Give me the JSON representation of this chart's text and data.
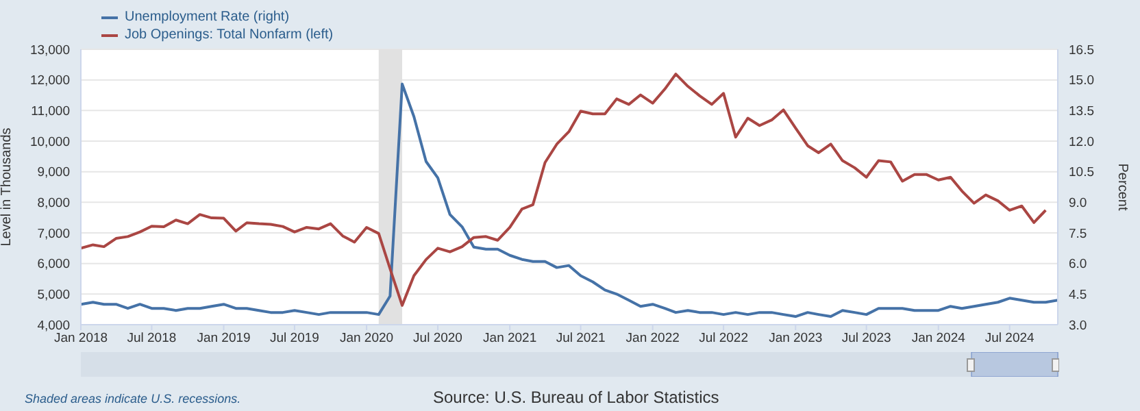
{
  "chart_data": {
    "type": "line",
    "x": [
      "2018-01",
      "2018-02",
      "2018-03",
      "2018-04",
      "2018-05",
      "2018-06",
      "2018-07",
      "2018-08",
      "2018-09",
      "2018-10",
      "2018-11",
      "2018-12",
      "2019-01",
      "2019-02",
      "2019-03",
      "2019-04",
      "2019-05",
      "2019-06",
      "2019-07",
      "2019-08",
      "2019-09",
      "2019-10",
      "2019-11",
      "2019-12",
      "2020-01",
      "2020-02",
      "2020-03",
      "2020-04",
      "2020-05",
      "2020-06",
      "2020-07",
      "2020-08",
      "2020-09",
      "2020-10",
      "2020-11",
      "2020-12",
      "2021-01",
      "2021-02",
      "2021-03",
      "2021-04",
      "2021-05",
      "2021-06",
      "2021-07",
      "2021-08",
      "2021-09",
      "2021-10",
      "2021-11",
      "2021-12",
      "2022-01",
      "2022-02",
      "2022-03",
      "2022-04",
      "2022-05",
      "2022-06",
      "2022-07",
      "2022-08",
      "2022-09",
      "2022-10",
      "2022-11",
      "2022-12",
      "2023-01",
      "2023-02",
      "2023-03",
      "2023-04",
      "2023-05",
      "2023-06",
      "2023-07",
      "2023-08",
      "2023-09",
      "2023-10",
      "2023-11",
      "2023-12",
      "2024-01",
      "2024-02",
      "2024-03",
      "2024-04",
      "2024-05",
      "2024-06",
      "2024-07",
      "2024-08",
      "2024-09",
      "2024-10",
      "2024-11"
    ],
    "series": [
      {
        "name": "Unemployment Rate (right)",
        "color": "#4572a7",
        "axis": "y2",
        "values": [
          4.0,
          4.1,
          4.0,
          4.0,
          3.8,
          4.0,
          3.8,
          3.8,
          3.7,
          3.8,
          3.8,
          3.9,
          4.0,
          3.8,
          3.8,
          3.7,
          3.6,
          3.6,
          3.7,
          3.6,
          3.5,
          3.6,
          3.6,
          3.6,
          3.6,
          3.5,
          4.4,
          14.8,
          13.2,
          11.0,
          10.2,
          8.4,
          7.8,
          6.8,
          6.7,
          6.7,
          6.4,
          6.2,
          6.1,
          6.1,
          5.8,
          5.9,
          5.4,
          5.1,
          4.7,
          4.5,
          4.2,
          3.9,
          4.0,
          3.8,
          3.6,
          3.7,
          3.6,
          3.6,
          3.5,
          3.6,
          3.5,
          3.6,
          3.6,
          3.5,
          3.4,
          3.6,
          3.5,
          3.4,
          3.7,
          3.6,
          3.5,
          3.8,
          3.8,
          3.8,
          3.7,
          3.7,
          3.7,
          3.9,
          3.8,
          3.9,
          4.0,
          4.1,
          4.3,
          4.2,
          4.1,
          4.1,
          4.2
        ]
      },
      {
        "name": "Job Openings: Total Nonfarm (left)",
        "color": "#aa4643",
        "values": [
          6500,
          6610,
          6550,
          6820,
          6880,
          7030,
          7220,
          7200,
          7420,
          7300,
          7600,
          7490,
          7480,
          7060,
          7330,
          7300,
          7280,
          7210,
          7030,
          7180,
          7130,
          7300,
          6900,
          6700,
          7180,
          6980,
          5830,
          4630,
          5600,
          6130,
          6500,
          6380,
          6550,
          6850,
          6880,
          6760,
          7180,
          7780,
          7920,
          9300,
          9900,
          10310,
          10980,
          10890,
          10890,
          11380,
          11200,
          11510,
          11240,
          11700,
          12190,
          11790,
          11480,
          11200,
          11560,
          10130,
          10750,
          10510,
          10690,
          11020,
          10430,
          9850,
          9620,
          9900,
          9360,
          9130,
          8820,
          9360,
          9320,
          8690,
          8910,
          8910,
          8730,
          8820,
          8370,
          7970,
          8240,
          8050,
          7740,
          7880,
          7340,
          7740,
          null
        ]
      }
    ],
    "ylabel": "Level in Thousands",
    "y2label": "Percent",
    "xlim": [
      "2018-01",
      "2024-11"
    ],
    "xticks": [
      {
        "value": "2018-01",
        "label": "Jan 2018"
      },
      {
        "value": "2018-07",
        "label": "Jul 2018"
      },
      {
        "value": "2019-01",
        "label": "Jan 2019"
      },
      {
        "value": "2019-07",
        "label": "Jul 2019"
      },
      {
        "value": "2020-01",
        "label": "Jan 2020"
      },
      {
        "value": "2020-07",
        "label": "Jul 2020"
      },
      {
        "value": "2021-01",
        "label": "Jan 2021"
      },
      {
        "value": "2021-07",
        "label": "Jul 2021"
      },
      {
        "value": "2022-01",
        "label": "Jan 2022"
      },
      {
        "value": "2022-07",
        "label": "Jul 2022"
      },
      {
        "value": "2023-01",
        "label": "Jan 2023"
      },
      {
        "value": "2023-07",
        "label": "Jul 2023"
      },
      {
        "value": "2024-01",
        "label": "Jan 2024"
      },
      {
        "value": "2024-07",
        "label": "Jul 2024"
      }
    ],
    "ylim": [
      4000,
      13000
    ],
    "yticks": [
      {
        "value": 4000,
        "label": "4,000"
      },
      {
        "value": 5000,
        "label": "5,000"
      },
      {
        "value": 6000,
        "label": "6,000"
      },
      {
        "value": 7000,
        "label": "7,000"
      },
      {
        "value": 8000,
        "label": "8,000"
      },
      {
        "value": 9000,
        "label": "9,000"
      },
      {
        "value": 10000,
        "label": "10,000"
      },
      {
        "value": 11000,
        "label": "11,000"
      },
      {
        "value": 12000,
        "label": "12,000"
      },
      {
        "value": 13000,
        "label": "13,000"
      }
    ],
    "y2lim": [
      3,
      16.5
    ],
    "y2ticks": [
      {
        "value": 3,
        "label": "3.0"
      },
      {
        "value": 4.5,
        "label": "4.5"
      },
      {
        "value": 6,
        "label": "6.0"
      },
      {
        "value": 7.5,
        "label": "7.5"
      },
      {
        "value": 9,
        "label": "9.0"
      },
      {
        "value": 10.5,
        "label": "10.5"
      },
      {
        "value": 12,
        "label": "12.0"
      },
      {
        "value": 13.5,
        "label": "13.5"
      },
      {
        "value": 15,
        "label": "15.0"
      },
      {
        "value": 16.5,
        "label": "16.5"
      }
    ],
    "bands": [
      {
        "axis": "x",
        "from": "2020-02",
        "to": "2020-04",
        "color": "#e1e1e1"
      }
    ],
    "grid": "y",
    "legend": "top left",
    "marker": "none",
    "line_style": "solid",
    "annotations": [
      "Shaded areas indicate U.S. recessions.",
      "Source: U.S. Bureau of Labor Statistics"
    ]
  }
}
